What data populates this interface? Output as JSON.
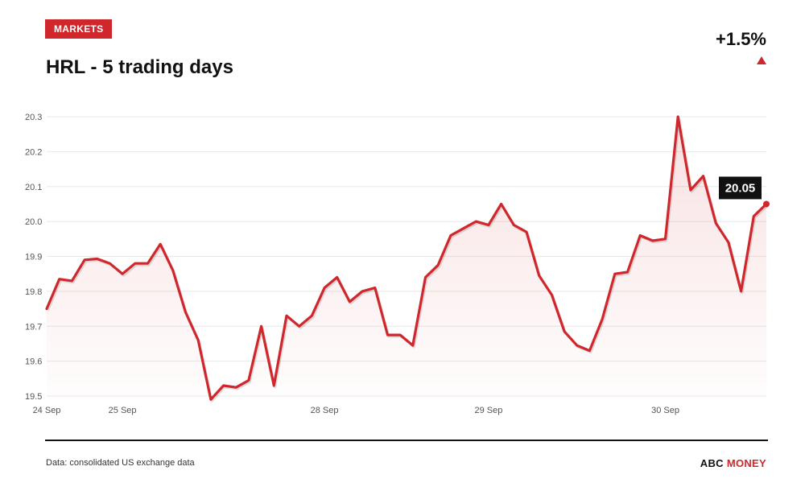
{
  "header": {
    "badge": "MARKETS",
    "title": "HRL - 5 trading days",
    "change": "+1.5%",
    "direction": "up"
  },
  "footer": {
    "source": "Data: consolidated US exchange data",
    "brand_part1": "ABC",
    "brand_part2": "MONEY"
  },
  "colors": {
    "accent": "#d0272c",
    "text": "#111111",
    "grid": "#e8e8e8"
  },
  "chart_data": {
    "type": "area",
    "title": "HRL - 5 trading days",
    "ylim": [
      19.5,
      20.3
    ],
    "yticks": [
      "19.5",
      "19.6",
      "19.7",
      "19.8",
      "19.9",
      "20.0",
      "20.1",
      "20.2",
      "20.3"
    ],
    "xticks": [
      {
        "label": "24 Sep",
        "t": 0
      },
      {
        "label": "25 Sep",
        "t": 6
      },
      {
        "label": "28 Sep",
        "t": 22
      },
      {
        "label": "29 Sep",
        "t": 35
      },
      {
        "label": "30 Sep",
        "t": 49
      }
    ],
    "grid": true,
    "last_value_label": "20.05",
    "series": [
      {
        "values": [
          19.75,
          19.835,
          19.83,
          19.89,
          19.893,
          19.88,
          19.85,
          19.88,
          19.88,
          19.935,
          19.86,
          19.74,
          19.66,
          19.49,
          19.53,
          19.525,
          19.545,
          19.7,
          19.53,
          19.73,
          19.7,
          19.73,
          19.81,
          19.84,
          19.77,
          19.8,
          19.81,
          19.675,
          19.675,
          19.645,
          19.84,
          19.875,
          19.96,
          19.98,
          20.0,
          19.99,
          20.05,
          19.99,
          19.97,
          19.845,
          19.79,
          19.685,
          19.645,
          19.63,
          19.72,
          19.85,
          19.855,
          19.96,
          19.945,
          19.95,
          20.3,
          20.09,
          20.13,
          19.995,
          19.94,
          19.8,
          20.015,
          20.05
        ]
      }
    ]
  }
}
